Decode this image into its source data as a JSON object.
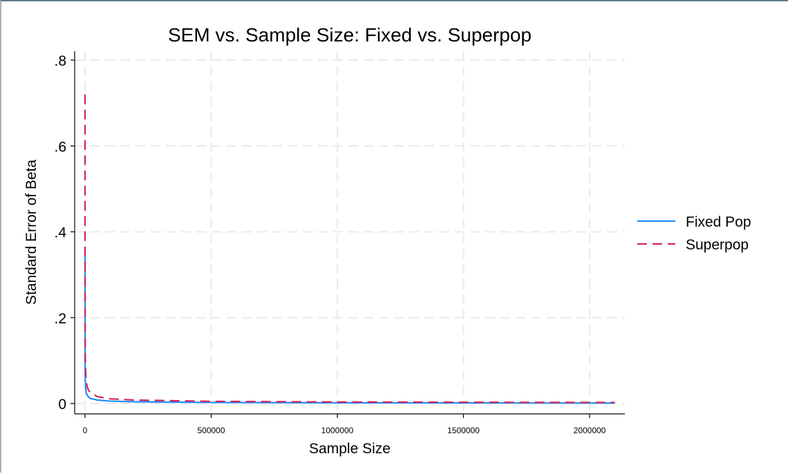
{
  "chart_data": {
    "type": "line",
    "title": "SEM vs. Sample Size: Fixed vs. Superpop",
    "xlabel": "Sample Size",
    "ylabel": "Standard Error of Beta",
    "xlim": [
      0,
      2100000
    ],
    "ylim": [
      0,
      0.8
    ],
    "x_ticks": [
      0,
      500000,
      1000000,
      1500000,
      2000000
    ],
    "x_tick_labels": [
      "0",
      "500000",
      "1000000",
      "1500000",
      "2000000"
    ],
    "y_ticks": [
      0,
      0.2,
      0.4,
      0.6,
      0.8
    ],
    "y_tick_labels": [
      "0",
      ".2",
      ".4",
      ".6",
      ".8"
    ],
    "grid": true,
    "legend_position": "right",
    "series": [
      {
        "name": "Fixed Pop",
        "color": "#1f8fff",
        "style": "solid",
        "x": [
          25,
          50,
          100,
          200,
          500,
          1000,
          2000,
          5000,
          10000,
          20000,
          50000,
          100000,
          200000,
          500000,
          1000000,
          1500000,
          2000000,
          2100000
        ],
        "y": [
          0.35,
          0.25,
          0.18,
          0.12,
          0.08,
          0.055,
          0.04,
          0.025,
          0.018,
          0.012,
          0.008,
          0.0055,
          0.004,
          0.0025,
          0.0018,
          0.0014,
          0.0012,
          0.0012
        ]
      },
      {
        "name": "Superpop",
        "color": "#d1245b",
        "style": "dashed",
        "x": [
          25,
          50,
          100,
          200,
          500,
          1000,
          2000,
          5000,
          10000,
          20000,
          50000,
          100000,
          200000,
          500000,
          1000000,
          1500000,
          2000000,
          2100000
        ],
        "y": [
          0.72,
          0.51,
          0.36,
          0.25,
          0.16,
          0.11,
          0.08,
          0.05,
          0.036,
          0.025,
          0.016,
          0.011,
          0.008,
          0.005,
          0.0036,
          0.0029,
          0.0025,
          0.0025
        ]
      }
    ]
  }
}
